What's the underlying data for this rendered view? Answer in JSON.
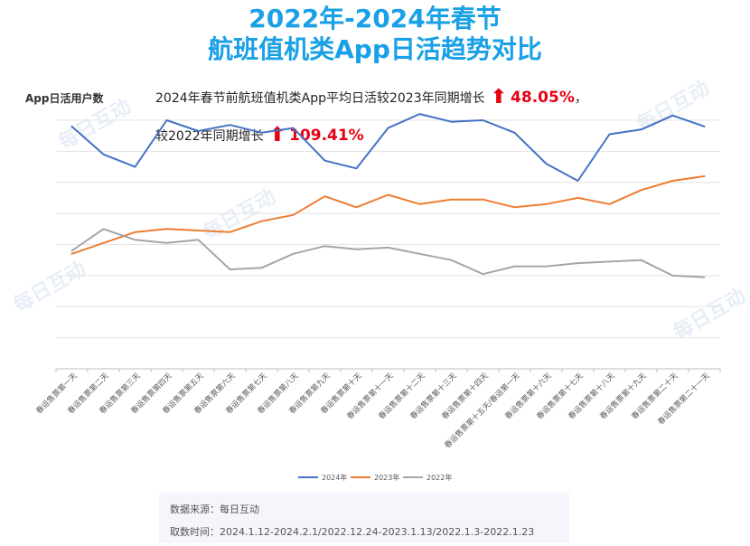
{
  "title_line1": "2022年-2024年春节",
  "title_line2": "航班值机类App日活趋势对比",
  "watermark": "每日互动",
  "note1": {
    "text": "2024年春节前航班值机类App平均日活较2023年同期增长",
    "pct": "48.05%",
    "tail": "，"
  },
  "note2": {
    "text": "较2022年同期增长",
    "pct": "109.41%"
  },
  "source": {
    "line1": "数据来源：每日互动",
    "line2": "取数时间：2024.1.12-2024.2.1/2022.12.24-2023.1.13/2022.1.3-2022.1.23"
  },
  "colors": {
    "s2024": "#4472c4",
    "s2023": "#ed7d31",
    "s2022": "#a5a5a5",
    "accent": "#1aa0e6",
    "up": "#e60012"
  },
  "chart_data": {
    "type": "line",
    "ylabel": "App日活用户数",
    "ylim": [
      0,
      8
    ],
    "grid": true,
    "legend": "bottom",
    "categories": [
      "春运售票第一天",
      "春运售票第二天",
      "春运售票第三天",
      "春运售票第四天",
      "春运售票第五天",
      "春运售票第六天",
      "春运售票第七天",
      "春运售票第八天",
      "春运售票第九天",
      "春运售票第十天",
      "春运售票第十一天",
      "春运售票第十二天",
      "春运售票第十三天",
      "春运售票第十四天",
      "春运售票第十五天/春运第一天",
      "春运售票第十六天",
      "春运售票第十七天",
      "春运售票第十八天",
      "春运售票第十九天",
      "春运售票第二十天",
      "春运售票第二十一天"
    ],
    "series": [
      {
        "name": "2024年",
        "values": [
          7.8,
          6.9,
          6.5,
          8.0,
          7.65,
          7.85,
          7.6,
          7.75,
          6.7,
          6.45,
          7.75,
          8.2,
          7.95,
          8.0,
          7.6,
          6.6,
          6.05,
          7.55,
          7.7,
          8.15,
          7.8
        ]
      },
      {
        "name": "2023年",
        "values": [
          3.7,
          4.05,
          4.4,
          4.5,
          4.45,
          4.4,
          4.75,
          4.95,
          5.55,
          5.2,
          5.6,
          5.3,
          5.45,
          5.45,
          5.2,
          5.3,
          5.5,
          5.3,
          5.75,
          6.05,
          6.2
        ]
      },
      {
        "name": "2022年",
        "values": [
          3.8,
          4.5,
          4.15,
          4.05,
          4.15,
          3.2,
          3.25,
          3.7,
          3.95,
          3.85,
          3.9,
          3.7,
          3.5,
          3.05,
          3.3,
          3.3,
          3.4,
          3.45,
          3.5,
          3.0,
          2.95
        ]
      }
    ]
  }
}
